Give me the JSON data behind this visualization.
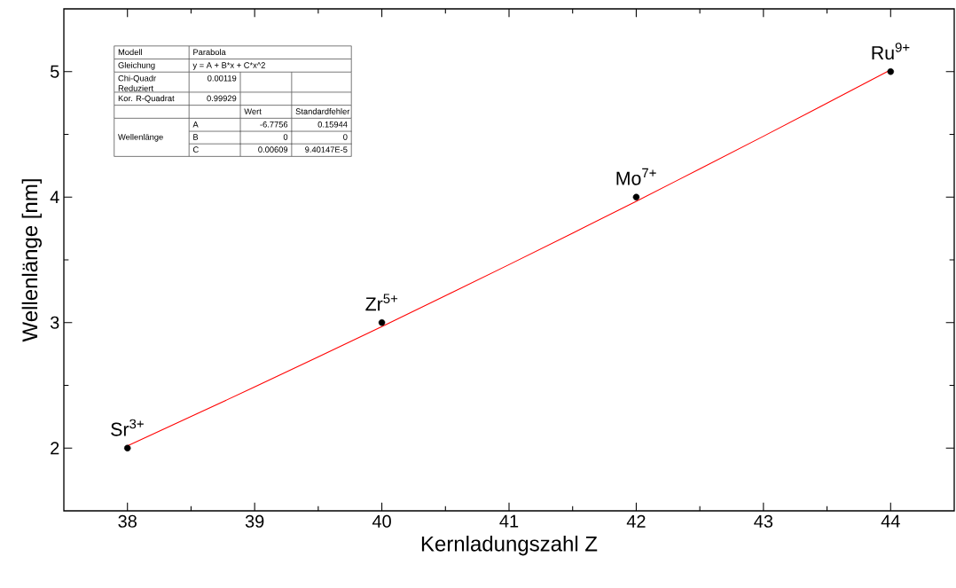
{
  "chart_data": {
    "type": "scatter",
    "xlabel": "Kernladungszahl Z",
    "ylabel": "Wellenlänge [nm]",
    "xlim": [
      37.5,
      44.5
    ],
    "ylim": [
      1.5,
      5.5
    ],
    "xticks": [
      38,
      39,
      40,
      41,
      42,
      43,
      44
    ],
    "yticks": [
      2,
      3,
      4,
      5
    ],
    "grid": false,
    "series": [
      {
        "color": "#000000",
        "marker": "circle",
        "x": [
          38,
          40,
          42,
          44
        ],
        "values": [
          2,
          3,
          4,
          5
        ]
      },
      {
        "type": "line",
        "color": "#ff0000",
        "x": [
          38,
          39,
          40,
          41,
          42,
          43,
          44
        ],
        "values": [
          2.018,
          2.487,
          2.968,
          3.462,
          3.967,
          4.485,
          5.014
        ]
      }
    ],
    "annotations": [
      "Modell",
      "Parabola",
      "Gleichung",
      "y = A + B*x + C*x^2",
      "Chi-Quadr Reduziert",
      "0.00119",
      "Kor. R-Quadrat",
      "0.99929",
      "Wert",
      "Standardfehler",
      "Wellenlänge",
      "A",
      "-6.7756",
      "0.15944",
      "B",
      "0",
      "0",
      "C",
      "0.00609",
      "9.40147E-5",
      {
        "text": "Sr$^{3+}$",
        "x": 38,
        "y": 2
      },
      {
        "text": "Zr$^{5+}$",
        "x": 40,
        "y": 3
      },
      {
        "text": "Mo$^{7+}$",
        "x": 42,
        "y": 4
      },
      {
        "text": "Ru$^{9+}$",
        "x": 44,
        "y": 5
      }
    ]
  }
}
